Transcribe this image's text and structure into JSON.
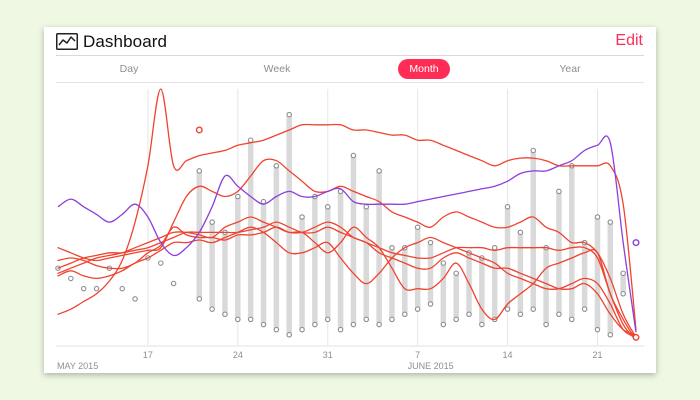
{
  "header": {
    "title": "Dashboard",
    "edit_label": "Edit",
    "icon": "line-chart-icon"
  },
  "tabs": [
    {
      "label": "Day",
      "active": false
    },
    {
      "label": "Week",
      "active": false
    },
    {
      "label": "Month",
      "active": true
    },
    {
      "label": "Year",
      "active": false
    }
  ],
  "colors": {
    "accent": "#ff2d55",
    "line": "#f0432f",
    "purple": "#8b3fdc",
    "bar": "#d9d9d9",
    "marker": "#8e8e93"
  },
  "chart_data": {
    "type": "line",
    "x_axis": {
      "ticks": [
        "17",
        "24",
        "31",
        "7",
        "14",
        "21"
      ],
      "period_labels": [
        "MAY 2015",
        "JUNE 2015"
      ]
    },
    "series_purple": {
      "x": [
        1,
        2,
        3,
        4,
        5,
        6,
        7,
        8,
        9,
        10,
        11,
        12,
        13,
        14,
        15,
        16,
        17,
        18,
        19,
        20,
        21,
        22,
        23,
        24,
        25,
        26,
        27,
        28,
        29,
        30,
        31,
        32,
        33,
        34,
        35,
        36,
        37,
        38,
        39,
        40,
        41,
        42,
        43,
        44,
        45,
        46
      ],
      "values": [
        54,
        57,
        54,
        51,
        48,
        51,
        55,
        50,
        40,
        35,
        38,
        44,
        54,
        66,
        62,
        58,
        55,
        58,
        60,
        58,
        58,
        60,
        61,
        56,
        55,
        55,
        55,
        55,
        56,
        57,
        58,
        59,
        60,
        61,
        62,
        64,
        67,
        68,
        68,
        70,
        72,
        76,
        78,
        79,
        40,
        5
      ]
    },
    "red_series": [
      {
        "values": [
          12,
          14,
          17,
          20,
          25,
          33,
          48,
          70,
          100,
          70,
          72,
          74,
          75,
          76,
          78,
          79,
          80,
          82,
          84,
          86,
          86,
          86,
          86,
          84,
          84,
          83,
          82,
          82,
          80,
          80,
          78,
          76,
          74,
          72,
          70,
          72,
          73,
          73,
          72,
          70,
          70,
          70,
          70,
          70,
          55,
          6
        ]
      },
      {
        "values": [
          33,
          34,
          33,
          31,
          30,
          30,
          32,
          36,
          39,
          46,
          43,
          42,
          42,
          41,
          43,
          43,
          44,
          46,
          44,
          44,
          40,
          36,
          40,
          46,
          42,
          38,
          30,
          22,
          22,
          22,
          26,
          32,
          24,
          14,
          10,
          16,
          20,
          24,
          30,
          32,
          34,
          36,
          36,
          20,
          10,
          2
        ]
      },
      {
        "values": [
          27,
          29,
          27,
          26,
          27,
          29,
          32,
          34,
          37,
          40,
          40,
          41,
          40,
          42,
          44,
          46,
          44,
          40,
          36,
          36,
          38,
          40,
          34,
          28,
          24,
          28,
          34,
          38,
          40,
          42,
          40,
          38,
          36,
          34,
          32,
          28,
          26,
          24,
          22,
          22,
          24,
          26,
          24,
          16,
          6,
          3
        ]
      },
      {
        "values": [
          28,
          30,
          32,
          34,
          35,
          36,
          38,
          40,
          42,
          44,
          44,
          43,
          42,
          46,
          48,
          50,
          48,
          46,
          44,
          44,
          46,
          48,
          46,
          42,
          40,
          36,
          34,
          32,
          30,
          30,
          34,
          36,
          34,
          32,
          30,
          30,
          28,
          26,
          24,
          22,
          22,
          24,
          20,
          12,
          6,
          4
        ]
      },
      {
        "values": [
          38,
          36,
          34,
          33,
          34,
          35,
          36,
          37,
          38,
          48,
          58,
          62,
          60,
          58,
          60,
          66,
          72,
          72,
          68,
          64,
          60,
          60,
          62,
          60,
          58,
          56,
          52,
          50,
          48,
          46,
          50,
          52,
          50,
          48,
          46,
          46,
          48,
          50,
          46,
          44,
          40,
          40,
          36,
          26,
          12,
          3
        ]
      },
      {
        "values": [
          30,
          32,
          34,
          35,
          36,
          36,
          37,
          38,
          40,
          42,
          44,
          44,
          44,
          44,
          44,
          45,
          46,
          48,
          46,
          44,
          44,
          46,
          44,
          42,
          40,
          38,
          36,
          35,
          34,
          34,
          36,
          38,
          38,
          38,
          37,
          38,
          38,
          38,
          38,
          37,
          38,
          38,
          34,
          20,
          8,
          2
        ]
      }
    ],
    "range_bars": [
      {
        "x": 11,
        "low": 18,
        "high": 68
      },
      {
        "x": 12,
        "low": 14,
        "high": 48
      },
      {
        "x": 13,
        "low": 12,
        "high": 44
      },
      {
        "x": 14,
        "low": 10,
        "high": 58
      },
      {
        "x": 15,
        "low": 10,
        "high": 80
      },
      {
        "x": 16,
        "low": 8,
        "high": 56
      },
      {
        "x": 17,
        "low": 6,
        "high": 70
      },
      {
        "x": 18,
        "low": 4,
        "high": 90
      },
      {
        "x": 19,
        "low": 6,
        "high": 50
      },
      {
        "x": 20,
        "low": 8,
        "high": 58
      },
      {
        "x": 21,
        "low": 10,
        "high": 54
      },
      {
        "x": 22,
        "low": 6,
        "high": 60
      },
      {
        "x": 23,
        "low": 8,
        "high": 74
      },
      {
        "x": 24,
        "low": 10,
        "high": 54
      },
      {
        "x": 25,
        "low": 8,
        "high": 68
      },
      {
        "x": 26,
        "low": 10,
        "high": 38
      },
      {
        "x": 27,
        "low": 12,
        "high": 38
      },
      {
        "x": 28,
        "low": 14,
        "high": 46
      },
      {
        "x": 29,
        "low": 16,
        "high": 40
      },
      {
        "x": 30,
        "low": 8,
        "high": 32
      },
      {
        "x": 31,
        "low": 10,
        "high": 28
      },
      {
        "x": 32,
        "low": 12,
        "high": 36
      },
      {
        "x": 33,
        "low": 8,
        "high": 34
      },
      {
        "x": 34,
        "low": 10,
        "high": 38
      },
      {
        "x": 35,
        "low": 14,
        "high": 54
      },
      {
        "x": 36,
        "low": 12,
        "high": 44
      },
      {
        "x": 37,
        "low": 14,
        "high": 76
      },
      {
        "x": 38,
        "low": 8,
        "high": 38
      },
      {
        "x": 39,
        "low": 12,
        "high": 60
      },
      {
        "x": 40,
        "low": 10,
        "high": 70
      },
      {
        "x": 41,
        "low": 14,
        "high": 40
      },
      {
        "x": 42,
        "low": 6,
        "high": 50
      },
      {
        "x": 43,
        "low": 4,
        "high": 48
      },
      {
        "x": 44,
        "low": 20,
        "high": 28
      }
    ],
    "isolated_points": [
      {
        "x": 0,
        "y": 30
      },
      {
        "x": 1,
        "y": 26
      },
      {
        "x": 2,
        "y": 22
      },
      {
        "x": 3,
        "y": 22
      },
      {
        "x": 4,
        "y": 30
      },
      {
        "x": 5,
        "y": 22
      },
      {
        "x": 6,
        "y": 18
      },
      {
        "x": 7,
        "y": 34
      },
      {
        "x": 8,
        "y": 32
      },
      {
        "x": 9,
        "y": 24
      }
    ],
    "endpoint_markers": [
      {
        "x": 11,
        "y": 84,
        "color": "red"
      },
      {
        "x": 45,
        "y": 40,
        "color": "purple"
      },
      {
        "x": 45,
        "y": 3,
        "color": "red"
      }
    ]
  }
}
